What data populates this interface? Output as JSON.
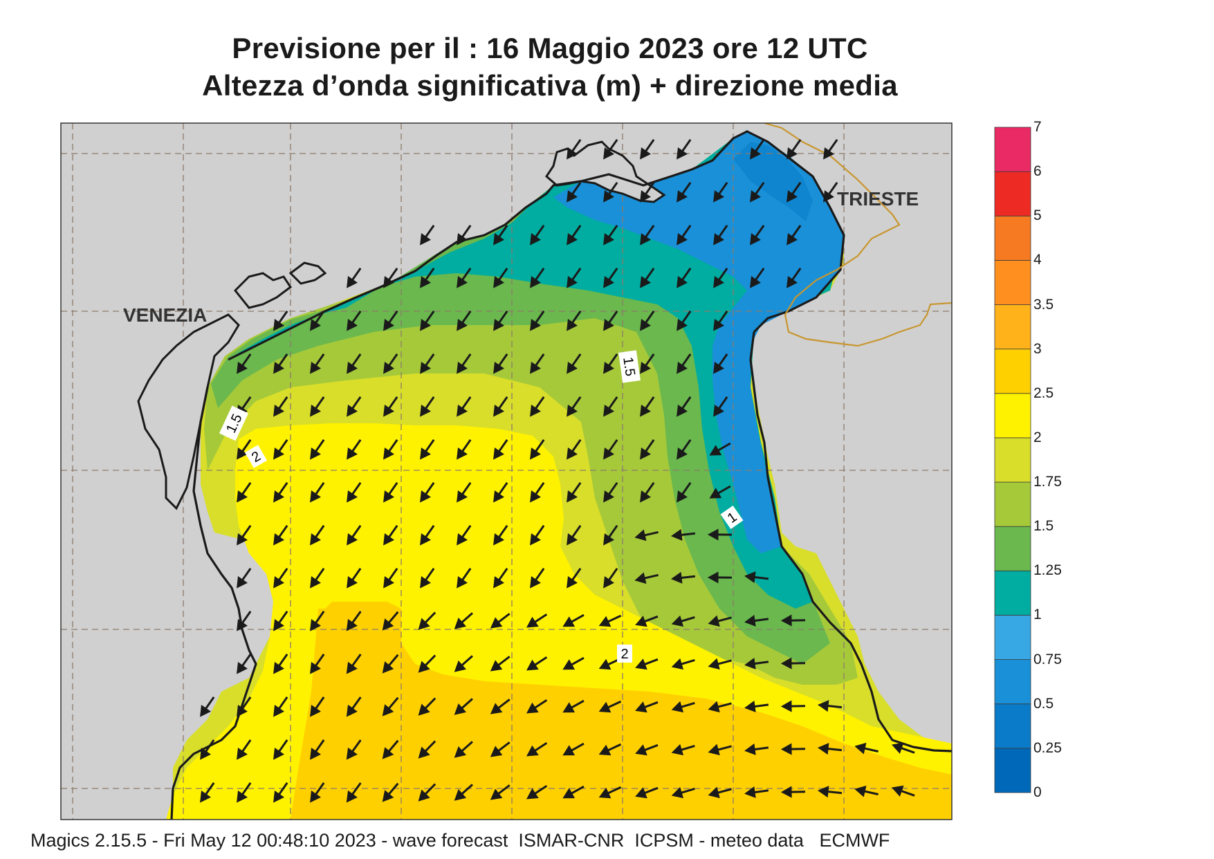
{
  "title": {
    "line1": "Previsione per il  :  16   Maggio  2023   ore 12 UTC",
    "line2": "Altezza d’onda significativa (m) + direzione media"
  },
  "places": {
    "venezia": "VENEZIA",
    "trieste": "TRIESTE"
  },
  "contour_labels": [
    "1.5",
    "2",
    "1.5",
    "1",
    "2"
  ],
  "colorbar": {
    "levels": [
      "0",
      "0.25",
      "0.5",
      "0.75",
      "1",
      "1.25",
      "1.5",
      "1.75",
      "2",
      "2.5",
      "3",
      "3.5",
      "4",
      "5",
      "6",
      "7"
    ],
    "colors": [
      "#0068b8",
      "#0a7bc8",
      "#1a90d8",
      "#38a8e4",
      "#00ada0",
      "#6ab84e",
      "#a6c93a",
      "#d8de2a",
      "#fff200",
      "#ffd000",
      "#ffb21a",
      "#ff9020",
      "#f57a22",
      "#ee2a24",
      "#ea2a64"
    ]
  },
  "map_colors": {
    "land": "#d0d0d0",
    "coast": "#1a1a1a",
    "border": "#c8962e",
    "grid": "#8c7b6b",
    "arrow": "#1a1a1a"
  },
  "footer": "Magics 2.15.5 - Fri May 12 00:48:10 2023 - wave forecast  ISMAR-CNR  ICPSM - meteo data   ECMWF"
}
